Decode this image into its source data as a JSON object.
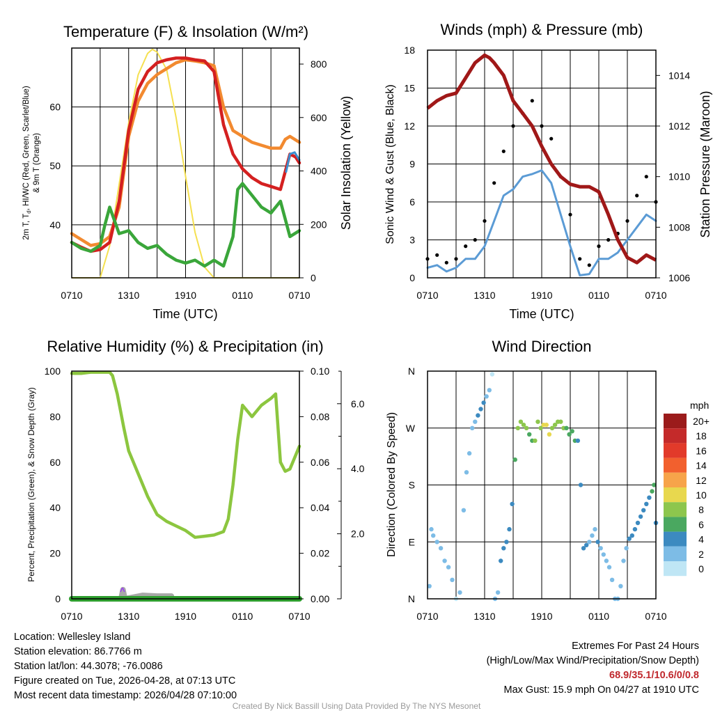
{
  "colors": {
    "t2m": "#d42020",
    "tdew": "#3aa63a",
    "hiwc": "#3b8fd0",
    "t9m": "#f28a30",
    "solar": "#f5e050",
    "wind": "#5b9bd5",
    "gust": "#000000",
    "pressure": "#a01818",
    "rh": "#8cc63f",
    "precip": "#2e9e2e",
    "snow": "#a8a8a8",
    "marker": "#9b30ff",
    "extremes": "#c0282d",
    "footer": "#9a9a9a"
  },
  "chart_data": [
    {
      "type": "line",
      "title": "Temperature (F) & Insolation (W/m²)",
      "xlabel": "Time (UTC)",
      "ylabel": "2m T, Td, HI/WC (Red, Green, Scarlet/Blue) & 9m T (Orange)",
      "ylabel_line1": "2m T, T",
      "ylabel_sub": "d",
      "ylabel_line1b": ", HI/WC (Red, Green, Scarlet/Blue)",
      "ylabel_line2": "& 9m T (Orange)",
      "ylabel_right": "Solar Insolation (Yellow)",
      "x_ticks": [
        "0710",
        "1310",
        "1910",
        "0110",
        "0710"
      ],
      "ylim": [
        31,
        70
      ],
      "y_ticks": [
        40,
        50,
        60
      ],
      "ylim_right": [
        0,
        860
      ],
      "y_ticks_right": [
        0,
        200,
        400,
        600,
        800
      ],
      "series": [
        {
          "name": "2m T",
          "color": "#d42020",
          "width": 4.5,
          "x": [
            0,
            1,
            2,
            3,
            4,
            5,
            6,
            7,
            8,
            9,
            10,
            11,
            12,
            13,
            14,
            15,
            16,
            17,
            18,
            19,
            20,
            21,
            22,
            23,
            23.6,
            24
          ],
          "y": [
            37,
            36.2,
            35.5,
            35.8,
            37,
            44,
            56,
            63,
            66,
            67.5,
            68,
            68.3,
            68.3,
            68,
            67.8,
            66,
            57,
            52,
            49.5,
            48,
            47,
            46.5,
            46,
            52,
            51.5,
            50.5
          ]
        },
        {
          "name": "9m T",
          "color": "#f28a30",
          "width": 4.5,
          "x": [
            0,
            1,
            2,
            3,
            4,
            5,
            6,
            7,
            8,
            9,
            10,
            11,
            12,
            13,
            14,
            15,
            16,
            17,
            18,
            19,
            20,
            21,
            22,
            22.5,
            23,
            24
          ],
          "y": [
            38.5,
            37.5,
            36.5,
            36.8,
            38,
            43,
            55,
            61,
            64,
            65.5,
            66.5,
            67.5,
            68,
            67.8,
            67.5,
            67,
            60,
            56,
            55,
            54,
            53.5,
            53,
            53,
            54.5,
            55,
            54
          ]
        },
        {
          "name": "Td",
          "color": "#3aa63a",
          "width": 4.5,
          "x": [
            0,
            1,
            2,
            3,
            3.5,
            4,
            5,
            6,
            7,
            8,
            9,
            10,
            11,
            12,
            13,
            14,
            15,
            16,
            17,
            17.5,
            18,
            19,
            20,
            21,
            21.5,
            22,
            23,
            24
          ],
          "y": [
            37,
            36,
            35.5,
            36.5,
            40,
            43,
            38.5,
            39,
            37,
            36,
            36.5,
            35,
            34,
            33.5,
            34,
            33,
            34,
            33,
            38,
            46,
            47,
            45,
            43,
            42,
            43,
            44,
            38,
            39
          ]
        },
        {
          "name": "HI/WC",
          "color": "#3b8fd0",
          "width": 3,
          "x": [
            22.6,
            23,
            23.5,
            24
          ],
          "y": [
            49,
            52,
            52.3,
            51
          ]
        },
        {
          "name": "Solar Insolation",
          "color": "#f5e050",
          "width": 2,
          "axis": "right",
          "x": [
            0,
            3,
            4,
            5,
            6,
            7,
            8,
            8.5,
            9,
            10,
            11,
            12,
            13,
            14,
            15,
            16,
            24
          ],
          "y": [
            0,
            0,
            120,
            350,
            580,
            760,
            840,
            855,
            845,
            780,
            600,
            380,
            170,
            40,
            0,
            0,
            0
          ]
        }
      ]
    },
    {
      "type": "line",
      "title": "Winds (mph) & Pressure (mb)",
      "xlabel": "Time (UTC)",
      "ylabel": "Sonic Wind & Gust (Blue, Black)",
      "ylabel_right": "Station Pressure (Maroon)",
      "x_ticks": [
        "0710",
        "1310",
        "1910",
        "0110",
        "0710"
      ],
      "ylim": [
        0,
        18
      ],
      "y_ticks": [
        0,
        3,
        6,
        9,
        12,
        15,
        18
      ],
      "ylim_right": [
        1006,
        1015
      ],
      "y_ticks_right": [
        1006,
        1008,
        1010,
        1012,
        1014
      ],
      "series": [
        {
          "name": "Sonic Wind",
          "color": "#5b9bd5",
          "width": 3,
          "x": [
            0,
            1,
            2,
            3,
            4,
            5,
            6,
            7,
            8,
            9,
            10,
            11,
            12,
            13,
            14,
            15,
            16,
            17,
            18,
            19,
            20,
            21,
            22,
            23,
            24
          ],
          "y": [
            0.8,
            1,
            0.5,
            0.8,
            1.5,
            1.5,
            2.5,
            4.5,
            6.5,
            7,
            8,
            8.2,
            8.5,
            7.5,
            5,
            2.5,
            0.2,
            0.3,
            1.5,
            1.5,
            2,
            3,
            4,
            5,
            4.5
          ]
        },
        {
          "name": "Gust",
          "color": "#000000",
          "type": "scatter",
          "x": [
            0,
            1,
            2,
            3,
            4,
            5,
            6,
            7,
            8,
            9,
            10,
            11,
            12,
            13,
            14,
            15,
            16,
            17,
            18,
            19,
            20,
            21,
            22,
            23,
            24
          ],
          "y": [
            1.5,
            1.8,
            1.2,
            1.5,
            2.5,
            3,
            4.5,
            7.5,
            10,
            12,
            13,
            14,
            12,
            11,
            8,
            5,
            1.5,
            1,
            2.5,
            3,
            3.5,
            4.5,
            6.5,
            8,
            6
          ]
        },
        {
          "name": "Station Pressure",
          "color": "#a01818",
          "width": 5,
          "axis": "right",
          "x": [
            0,
            1,
            2,
            3,
            4,
            5,
            6,
            6.5,
            7,
            8,
            9,
            10,
            11,
            12,
            13,
            14,
            15,
            16,
            17,
            18,
            19,
            19.5,
            20,
            21,
            22,
            23,
            24
          ],
          "y": [
            1012.7,
            1013,
            1013.2,
            1013.3,
            1013.9,
            1014.5,
            1014.8,
            1014.7,
            1014.5,
            1014,
            1013,
            1012.5,
            1012,
            1011.2,
            1010.5,
            1010,
            1009.7,
            1009.6,
            1009.6,
            1009.4,
            1008.5,
            1008,
            1007.5,
            1006.8,
            1006.6,
            1006.9,
            1006.7
          ]
        }
      ]
    },
    {
      "type": "line",
      "title": "Relative Humidity (%) & Precipitation (in)",
      "ylabel": "Percent, Precipitation (Green), & Snow Depth (Gray)",
      "x_ticks": [
        "0710",
        "1310",
        "1910",
        "0110",
        "0710"
      ],
      "ylim": [
        0,
        100
      ],
      "y_ticks": [
        0,
        20,
        40,
        60,
        80,
        100
      ],
      "ylim_right": [
        0,
        0.1
      ],
      "y_ticks_right": [
        "0.00",
        "0.02",
        "0.04",
        "0.06",
        "0.08",
        "0.10"
      ],
      "snow_axis_ticks": [
        "2.0",
        "4.0",
        "6.0"
      ],
      "series": [
        {
          "name": "Relative Humidity",
          "color": "#8cc63f",
          "width": 4.5,
          "x": [
            0,
            1,
            2,
            3,
            4,
            4.3,
            4.8,
            5.5,
            6,
            7,
            8,
            9,
            10,
            11,
            12,
            13,
            14,
            15,
            16,
            16.5,
            17,
            17.5,
            18,
            19,
            20,
            21,
            21.5,
            22,
            22.5,
            23,
            24
          ],
          "y": [
            99,
            99,
            99.5,
            99.5,
            99.5,
            98,
            90,
            75,
            65,
            55,
            45,
            37,
            34,
            32,
            30,
            27,
            27.5,
            28,
            29.5,
            35,
            50,
            70,
            85,
            80,
            85,
            88,
            90,
            60,
            56,
            57,
            67
          ]
        },
        {
          "name": "Precipitation",
          "color": "#2e9e2e",
          "width": 8,
          "x": [
            0,
            24
          ],
          "y": [
            0,
            0
          ]
        },
        {
          "name": "Snow Depth",
          "color": "#a8a8a8",
          "x": [
            5.2,
            5.4,
            5.6,
            7.5,
            9,
            10.5
          ],
          "y": [
            0,
            4,
            0,
            1.5,
            1.2,
            1.2
          ]
        },
        {
          "name": "Marker",
          "color": "#9b30ff",
          "label": "^",
          "x": [
            5.35
          ],
          "y": [
            3.5
          ]
        }
      ]
    },
    {
      "type": "scatter",
      "title": "Wind Direction",
      "ylabel": "Direction (Colored By Speed)",
      "x_ticks": [
        "0710",
        "1310",
        "1910",
        "0110",
        "0710"
      ],
      "y_ticks": [
        "N",
        "E",
        "S",
        "W",
        "N"
      ],
      "ylim": [
        0,
        360
      ],
      "colorbar_title": "mph",
      "colorbar_labels": [
        "20+",
        "18",
        "16",
        "14",
        "12",
        "10",
        "8",
        "6",
        "4",
        "2",
        "0"
      ],
      "colorbar_colors": [
        "#9b1b1b",
        "#c42a2a",
        "#e23a2a",
        "#f2602e",
        "#f7a44a",
        "#e8d84e",
        "#8dc64d",
        "#4aa860",
        "#3c8ac0",
        "#7dbce6",
        "#bfe6f5"
      ],
      "points_dir": [
        20,
        110,
        100,
        90,
        80,
        60,
        50,
        30,
        0,
        10,
        140,
        200,
        230,
        270,
        280,
        290,
        300,
        310,
        320,
        330,
        355,
        0,
        10,
        60,
        80,
        90,
        110,
        150,
        220,
        270,
        280,
        275,
        270,
        260,
        250,
        250,
        280,
        270,
        275,
        275,
        260,
        270,
        275,
        280,
        280,
        270,
        270,
        260,
        265,
        250,
        250,
        180,
        80,
        85,
        90,
        100,
        110,
        90,
        80,
        70,
        60,
        50,
        30,
        0,
        0,
        20,
        60,
        80,
        95,
        100,
        110,
        120,
        130,
        140,
        150,
        160,
        170,
        180,
        120
      ],
      "points_t": [
        0.2,
        0.4,
        0.6,
        1,
        1.4,
        1.8,
        2.2,
        2.6,
        3,
        3.4,
        3.8,
        4.1,
        4.4,
        4.7,
        5,
        5.3,
        5.6,
        5.9,
        6.2,
        6.5,
        6.8,
        7.1,
        7.4,
        7.7,
        8,
        8.3,
        8.6,
        8.9,
        9.2,
        9.5,
        9.8,
        10.1,
        10.4,
        10.7,
        11,
        11.3,
        11.6,
        11.9,
        12.2,
        12.5,
        12.8,
        13.1,
        13.4,
        13.7,
        14,
        14.3,
        14.6,
        14.9,
        15.2,
        15.5,
        15.8,
        16.1,
        16.4,
        16.7,
        17,
        17.3,
        17.6,
        17.9,
        18.2,
        18.5,
        18.8,
        19.1,
        19.4,
        19.7,
        20,
        20.3,
        20.6,
        20.9,
        21.2,
        21.5,
        21.8,
        22.1,
        22.4,
        22.7,
        23,
        23.3,
        23.6,
        23.8,
        24
      ],
      "points_speed": [
        1,
        1,
        2,
        2,
        1,
        2,
        1,
        1,
        0,
        1,
        1,
        1,
        2,
        1,
        1,
        4,
        3,
        3,
        2,
        1,
        0,
        1,
        2,
        3,
        4,
        4,
        3,
        4,
        5,
        7,
        7,
        7,
        7,
        6,
        6,
        7,
        8,
        8,
        9,
        10,
        9,
        8,
        8,
        7,
        7,
        8,
        6,
        6,
        6,
        5,
        4,
        3,
        3,
        3,
        2,
        2,
        2,
        3,
        2,
        2,
        1,
        1,
        1,
        1,
        1,
        1,
        2,
        2,
        3,
        3,
        3,
        3,
        3,
        3,
        4,
        4,
        5,
        6,
        4
      ]
    }
  ],
  "info_left": {
    "location": "Location: Wellesley Island",
    "elevation": "Station elevation: 86.7766 m",
    "latlon": "Station lat/lon: 44.3078; -76.0086",
    "created": "Figure created on Tue, 2026-04-28, at 07:13 UTC",
    "recent": "Most recent data timestamp: 2026/04/28 07:10:00"
  },
  "info_right": {
    "title": "Extremes For Past 24 Hours",
    "subtitle": "(High/Low/Max Wind/Precipitation/Snow Depth)",
    "values": "68.9/35.1/10.6/0/0.8",
    "max_gust": "Max Gust: 15.9 mph On 04/27 at 1910 UTC"
  },
  "footer": "Created By Nick Bassill Using Data Provided By The NYS Mesonet"
}
